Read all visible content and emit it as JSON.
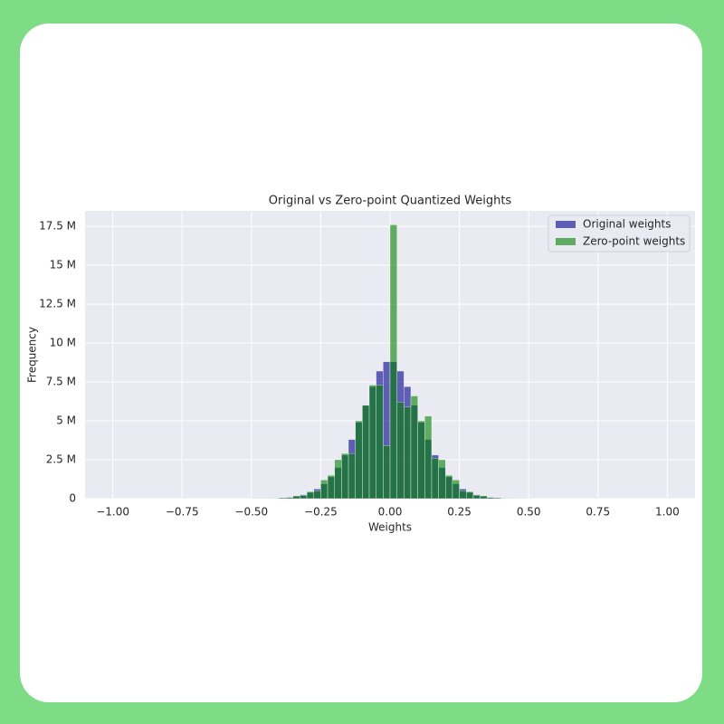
{
  "chart_data": {
    "type": "histogram",
    "title": "Original vs Zero-point Quantized Weights",
    "xlabel": "Weights",
    "ylabel": "Frequency",
    "bins": [
      -0.5,
      -0.475,
      -0.45,
      -0.425,
      -0.4,
      -0.375,
      -0.35,
      -0.325,
      -0.3,
      -0.275,
      -0.25,
      -0.225,
      -0.2,
      -0.175,
      -0.15,
      -0.125,
      -0.1,
      -0.075,
      -0.05,
      -0.025,
      0,
      0.025,
      0.05,
      0.075,
      0.1,
      0.125,
      0.15,
      0.175,
      0.2,
      0.225,
      0.25,
      0.275,
      0.3,
      0.325,
      0.35,
      0.375,
      0.4,
      0.425,
      0.45,
      0.475,
      0.5
    ],
    "series": [
      {
        "name": "Original weights",
        "color": "#00008b",
        "values": [
          4000,
          8000,
          15000,
          30000,
          50000,
          90000,
          150000,
          250000,
          400000,
          620000,
          950000,
          1400000,
          2000000,
          2800000,
          3800000,
          4900000,
          6000000,
          7200000,
          8200000,
          8800000,
          8800000,
          8200000,
          7200000,
          6000000,
          4900000,
          3800000,
          2800000,
          2000000,
          1400000,
          950000,
          620000,
          400000,
          250000,
          150000,
          90000,
          50000,
          30000,
          15000,
          8000,
          4000
        ]
      },
      {
        "name": "Zero-point weights",
        "color": "#008000",
        "values": [
          5000,
          5000,
          20000,
          20000,
          60000,
          70000,
          180000,
          200000,
          450000,
          500000,
          1200000,
          1500000,
          2500000,
          2900000,
          2900000,
          5000000,
          6000000,
          7300000,
          7300000,
          3400000,
          17600000,
          6200000,
          5900000,
          6600000,
          5000000,
          5300000,
          2600000,
          2500000,
          1500000,
          1200000,
          500000,
          450000,
          200000,
          180000,
          70000,
          60000,
          20000,
          20000,
          5000,
          5000
        ]
      }
    ],
    "xlim": [
      -1.1,
      1.1
    ],
    "ylim": [
      0,
      18500000
    ],
    "xticks": [
      {
        "value": -1,
        "label": "−1.00"
      },
      {
        "value": -0.75,
        "label": "−0.75"
      },
      {
        "value": -0.5,
        "label": "−0.50"
      },
      {
        "value": -0.25,
        "label": "−0.25"
      },
      {
        "value": 0,
        "label": "0.00"
      },
      {
        "value": 0.25,
        "label": "0.25"
      },
      {
        "value": 0.5,
        "label": "0.50"
      },
      {
        "value": 0.75,
        "label": "0.75"
      },
      {
        "value": 1,
        "label": "1.00"
      }
    ],
    "yticks": [
      0,
      {
        "value": 2500000,
        "label": "2.5 M"
      },
      {
        "value": 5000000,
        "label": "5 M"
      },
      {
        "value": 7500000,
        "label": "7.5 M"
      },
      {
        "value": 10000000,
        "label": "10 M"
      },
      {
        "value": 12500000,
        "label": "12.5 M"
      },
      {
        "value": 15000000,
        "label": "15 M"
      },
      {
        "value": 17500000,
        "label": "17.5 M"
      }
    ],
    "grid": true,
    "legend": "upper right"
  }
}
